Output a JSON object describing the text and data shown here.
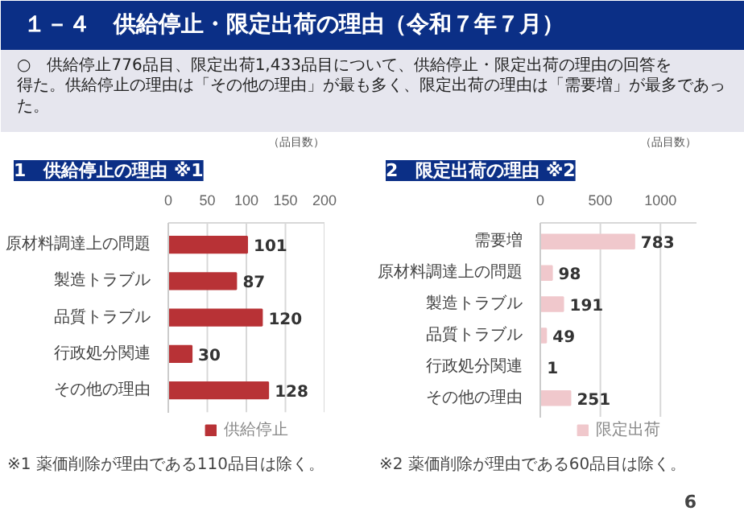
{
  "chart_data": [
    {
      "type": "other",
      "title": "１－４　供給停止・限定出荷の理由（令和７年７月）",
      "subtitle": "○　供給停止776品目、限定出荷1,433品目について、供給停止・限定出荷の理由の回答を得た。供給停止の理由は「その他の理由」が最も多く、限定出荷の理由は「需要増」が最多であった。"
    },
    {
      "type": "bar",
      "orientation": "horizontal",
      "title": "1　供給停止の理由 ※1",
      "categories": [
        "原材料調達上の問題",
        "製造トラブル",
        "品質トラブル",
        "行政処分関連",
        "その他の理由"
      ],
      "series": [
        {
          "name": "供給停止",
          "color": "#b83236",
          "values": [
            101,
            87,
            120,
            30,
            128
          ]
        }
      ],
      "xlim": [
        0,
        200
      ],
      "xticks": [
        0,
        50,
        100,
        150,
        200
      ],
      "grid": "x",
      "legend": "bottom",
      "data_labels": true,
      "annotations": [
        "（品目数）",
        "※1  薬価削除が理由である110品目は除く。"
      ]
    },
    {
      "type": "bar",
      "orientation": "horizontal",
      "title": "2　限定出荷の理由 ※2",
      "categories": [
        "需要増",
        "原材料調達上の問題",
        "製造トラブル",
        "品質トラブル",
        "行政処分関連",
        "その他の理由"
      ],
      "series": [
        {
          "name": "限定出荷",
          "color": "#f0c8cc",
          "values": [
            783,
            98,
            191,
            49,
            1,
            251
          ]
        }
      ],
      "xlim": [
        0,
        1300
      ],
      "xticks": [
        0,
        500,
        1000
      ],
      "grid": "x",
      "legend": "bottom",
      "data_labels": true,
      "annotations": [
        "（品目数）",
        "※2  薬価削除が理由である60品目は除く。",
        "6"
      ]
    }
  ]
}
